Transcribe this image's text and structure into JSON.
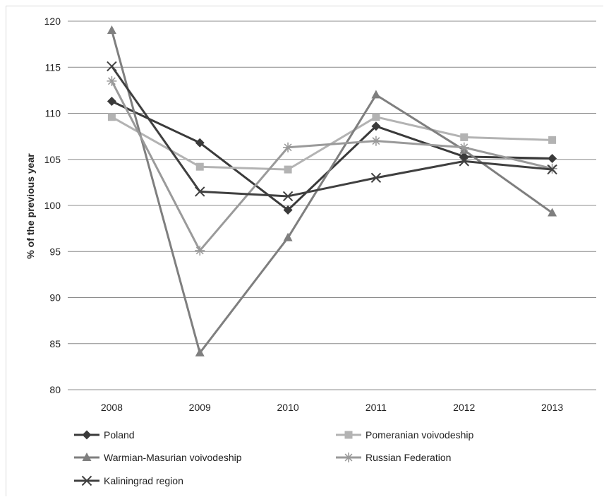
{
  "chart_data": {
    "type": "line",
    "ylabel": "% of the previous year",
    "xlabel": "",
    "categories": [
      "2008",
      "2009",
      "2010",
      "2011",
      "2012",
      "2013"
    ],
    "ylim": [
      80,
      120
    ],
    "yticks": [
      80,
      85,
      90,
      95,
      100,
      105,
      110,
      115,
      120
    ],
    "grid": "horizontal",
    "legend_position": "bottom",
    "series": [
      {
        "name": "Poland",
        "marker": "diamond",
        "color": "#3a3a3a",
        "values": [
          111.3,
          106.8,
          99.5,
          108.6,
          105.3,
          105.1
        ]
      },
      {
        "name": "Pomeranian voivodeship",
        "marker": "square",
        "color": "#b3b3b3",
        "values": [
          109.6,
          104.2,
          103.9,
          109.6,
          107.4,
          107.1
        ]
      },
      {
        "name": "Warmian-Masurian voivodeship",
        "marker": "triangle",
        "color": "#7f7f7f",
        "values": [
          119.0,
          84.0,
          96.5,
          112.0,
          106.0,
          99.2
        ]
      },
      {
        "name": "Russian Federation",
        "marker": "star",
        "color": "#9a9a9a",
        "values": [
          113.5,
          95.1,
          106.3,
          107.0,
          106.3,
          104.0
        ]
      },
      {
        "name": "Kaliningrad region",
        "marker": "x",
        "color": "#404040",
        "values": [
          115.1,
          101.5,
          101.0,
          103.0,
          104.8,
          103.9
        ]
      }
    ]
  }
}
